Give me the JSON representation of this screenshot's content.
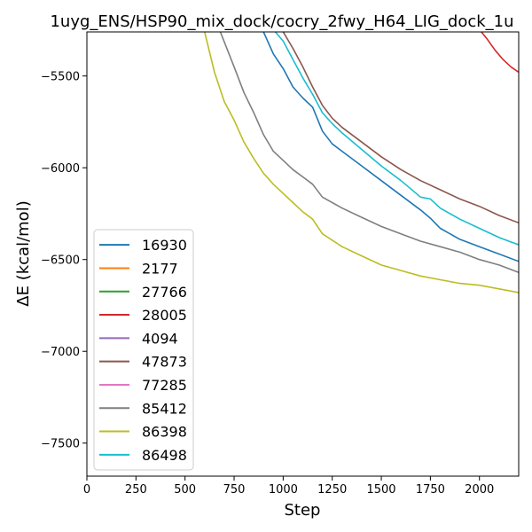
{
  "chart_data": {
    "type": "line",
    "title": "1uyg_ENS/HSP90_mix_dock/cocry_2fwy_H64_LIG_dock_1u",
    "xlabel": "Step",
    "ylabel": "ΔE (kcal/mol)",
    "xlim": [
      0,
      2200
    ],
    "ylim": [
      -7680,
      -5260
    ],
    "x_ticks": [
      0,
      250,
      500,
      750,
      1000,
      1250,
      1500,
      1750,
      2000
    ],
    "y_ticks": [
      -7500,
      -7000,
      -6500,
      -6000,
      -5500
    ],
    "grid": false,
    "legend_position": "lower-left",
    "series": [
      {
        "name": "16930",
        "color": "#1f77b4",
        "points": [
          [
            900,
            -5260
          ],
          [
            950,
            -5380
          ],
          [
            1000,
            -5460
          ],
          [
            1050,
            -5560
          ],
          [
            1100,
            -5620
          ],
          [
            1150,
            -5670
          ],
          [
            1200,
            -5800
          ],
          [
            1250,
            -5870
          ],
          [
            1300,
            -5910
          ],
          [
            1400,
            -5990
          ],
          [
            1500,
            -6070
          ],
          [
            1600,
            -6150
          ],
          [
            1700,
            -6230
          ],
          [
            1750,
            -6275
          ],
          [
            1800,
            -6330
          ],
          [
            1900,
            -6390
          ],
          [
            2000,
            -6430
          ],
          [
            2100,
            -6470
          ],
          [
            2200,
            -6510
          ]
        ]
      },
      {
        "name": "2177",
        "color": "#ff7f0e",
        "points": []
      },
      {
        "name": "27766",
        "color": "#2ca02c",
        "points": []
      },
      {
        "name": "28005",
        "color": "#d62728",
        "points": [
          [
            2010,
            -5260
          ],
          [
            2040,
            -5300
          ],
          [
            2080,
            -5360
          ],
          [
            2120,
            -5410
          ],
          [
            2160,
            -5450
          ],
          [
            2200,
            -5480
          ]
        ]
      },
      {
        "name": "4094",
        "color": "#9467bd",
        "points": []
      },
      {
        "name": "47873",
        "color": "#8c564b",
        "points": [
          [
            1000,
            -5260
          ],
          [
            1050,
            -5350
          ],
          [
            1100,
            -5450
          ],
          [
            1150,
            -5560
          ],
          [
            1200,
            -5660
          ],
          [
            1250,
            -5730
          ],
          [
            1300,
            -5780
          ],
          [
            1400,
            -5860
          ],
          [
            1500,
            -5940
          ],
          [
            1600,
            -6010
          ],
          [
            1700,
            -6070
          ],
          [
            1800,
            -6120
          ],
          [
            1900,
            -6170
          ],
          [
            2000,
            -6210
          ],
          [
            2100,
            -6260
          ],
          [
            2200,
            -6300
          ]
        ]
      },
      {
        "name": "77285",
        "color": "#e377c2",
        "points": []
      },
      {
        "name": "85412",
        "color": "#7f7f7f",
        "points": [
          [
            680,
            -5260
          ],
          [
            750,
            -5450
          ],
          [
            800,
            -5590
          ],
          [
            850,
            -5700
          ],
          [
            900,
            -5820
          ],
          [
            950,
            -5910
          ],
          [
            1000,
            -5960
          ],
          [
            1050,
            -6010
          ],
          [
            1100,
            -6050
          ],
          [
            1150,
            -6090
          ],
          [
            1200,
            -6160
          ],
          [
            1300,
            -6220
          ],
          [
            1400,
            -6270
          ],
          [
            1500,
            -6320
          ],
          [
            1600,
            -6360
          ],
          [
            1700,
            -6400
          ],
          [
            1800,
            -6430
          ],
          [
            1900,
            -6460
          ],
          [
            2000,
            -6500
          ],
          [
            2100,
            -6530
          ],
          [
            2200,
            -6570
          ]
        ]
      },
      {
        "name": "86398",
        "color": "#bcbd22",
        "points": [
          [
            600,
            -5260
          ],
          [
            650,
            -5480
          ],
          [
            700,
            -5640
          ],
          [
            750,
            -5740
          ],
          [
            800,
            -5860
          ],
          [
            850,
            -5950
          ],
          [
            900,
            -6030
          ],
          [
            950,
            -6090
          ],
          [
            1000,
            -6140
          ],
          [
            1050,
            -6190
          ],
          [
            1100,
            -6240
          ],
          [
            1150,
            -6280
          ],
          [
            1200,
            -6360
          ],
          [
            1300,
            -6430
          ],
          [
            1400,
            -6480
          ],
          [
            1500,
            -6530
          ],
          [
            1600,
            -6560
          ],
          [
            1700,
            -6590
          ],
          [
            1800,
            -6610
          ],
          [
            1900,
            -6630
          ],
          [
            2000,
            -6640
          ],
          [
            2100,
            -6660
          ],
          [
            2200,
            -6680
          ]
        ]
      },
      {
        "name": "86498",
        "color": "#17becf",
        "points": [
          [
            960,
            -5260
          ],
          [
            1000,
            -5310
          ],
          [
            1050,
            -5410
          ],
          [
            1100,
            -5510
          ],
          [
            1150,
            -5600
          ],
          [
            1200,
            -5700
          ],
          [
            1250,
            -5760
          ],
          [
            1300,
            -5810
          ],
          [
            1400,
            -5900
          ],
          [
            1500,
            -5990
          ],
          [
            1600,
            -6070
          ],
          [
            1700,
            -6160
          ],
          [
            1750,
            -6170
          ],
          [
            1800,
            -6220
          ],
          [
            1900,
            -6280
          ],
          [
            2000,
            -6330
          ],
          [
            2100,
            -6380
          ],
          [
            2200,
            -6420
          ]
        ]
      }
    ]
  }
}
